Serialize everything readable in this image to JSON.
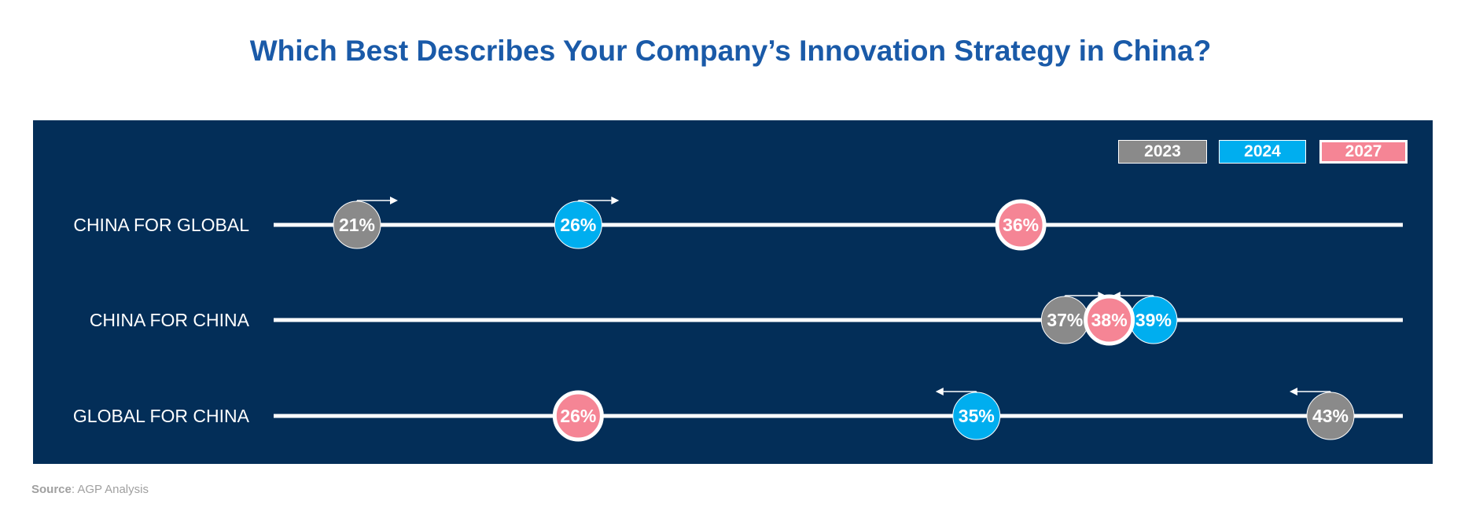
{
  "title": "Which Best Describes Your Company’s Innovation Strategy in China?",
  "source": {
    "label": "Source",
    "text": ": AGP Analysis"
  },
  "colors": {
    "title": "#1a5aa8",
    "panel": "#032e58",
    "2023": "#8a8a8a",
    "2024": "#00aeef",
    "2027": "#f58595",
    "line": "#ffffff"
  },
  "chart_data": {
    "type": "dot-plot",
    "legend": [
      "2023",
      "2024",
      "2027"
    ],
    "categories": [
      "CHINA FOR GLOBAL",
      "CHINA FOR CHINA",
      "GLOBAL FOR CHINA"
    ],
    "series": [
      {
        "name": "2023",
        "values": [
          21,
          37,
          43
        ],
        "labels": [
          "21%",
          "37%",
          "43%"
        ]
      },
      {
        "name": "2024",
        "values": [
          26,
          39,
          35
        ],
        "labels": [
          "26%",
          "39%",
          "35%"
        ]
      },
      {
        "name": "2027",
        "values": [
          36,
          38,
          26
        ],
        "labels": [
          "36%",
          "38%",
          "26%"
        ]
      }
    ],
    "trend_arrows": [
      {
        "category": "CHINA FOR GLOBAL",
        "series": "2023",
        "direction": "right"
      },
      {
        "category": "CHINA FOR GLOBAL",
        "series": "2024",
        "direction": "right"
      },
      {
        "category": "CHINA FOR CHINA",
        "series": "2023",
        "direction": "right"
      },
      {
        "category": "CHINA FOR CHINA",
        "series": "2024",
        "direction": "left"
      },
      {
        "category": "GLOBAL FOR CHINA",
        "series": "2024",
        "direction": "left"
      },
      {
        "category": "GLOBAL FOR CHINA",
        "series": "2023",
        "direction": "left"
      }
    ],
    "legend_position": "top-right",
    "grid": false
  }
}
